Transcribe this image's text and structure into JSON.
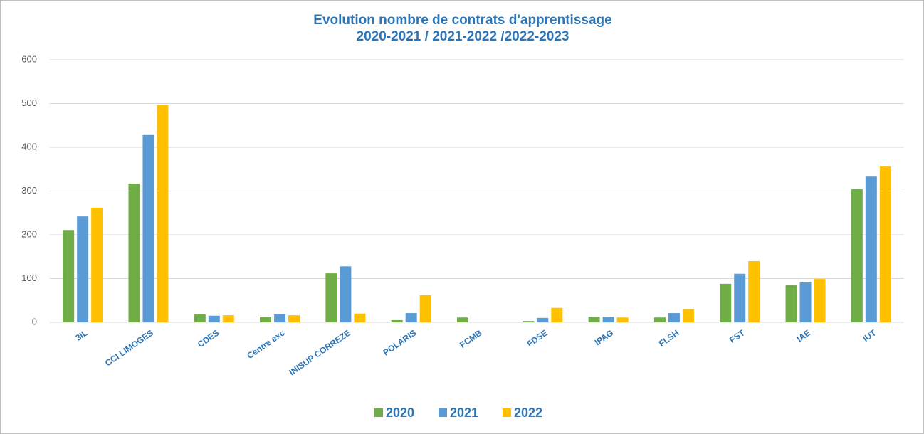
{
  "chart_data": {
    "type": "bar",
    "title": "Evolution nombre de contrats d'apprentissage",
    "subtitle": "2020-2021 / 2021-2022 /2022-2023",
    "categories": [
      "3IL",
      "CCI LIMOGES",
      "CDES",
      "Centre exc",
      "INISUP CORREZE",
      "POLARIS",
      "FCMB",
      "FDSE",
      "IPAG",
      "FLSH",
      "FST",
      "IAE",
      "IUT"
    ],
    "series": [
      {
        "name": "2020",
        "color": "#70ad47",
        "values": [
          211,
          317,
          18,
          13,
          112,
          5,
          11,
          3,
          13,
          11,
          88,
          85,
          304
        ]
      },
      {
        "name": "2021",
        "color": "#5b9bd5",
        "values": [
          242,
          428,
          15,
          18,
          128,
          21,
          0,
          10,
          13,
          21,
          111,
          91,
          333
        ]
      },
      {
        "name": "2022",
        "color": "#ffc000",
        "values": [
          262,
          496,
          16,
          16,
          20,
          62,
          0,
          33,
          11,
          30,
          140,
          99,
          356
        ]
      }
    ],
    "ylim": [
      0,
      600
    ],
    "yticks": [
      0,
      100,
      200,
      300,
      400,
      500,
      600
    ],
    "grid": true,
    "legend": "bottom"
  }
}
